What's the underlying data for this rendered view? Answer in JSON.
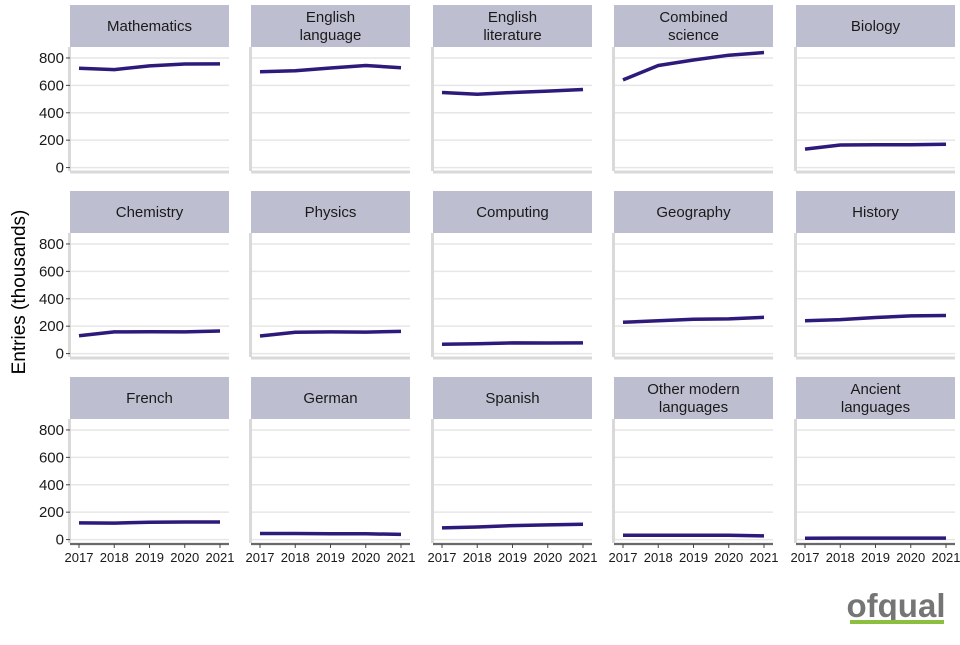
{
  "chart_data": {
    "type": "line",
    "layout": "facet-grid-small-multiples",
    "ylabel": "Entries (thousands)",
    "xlabel": "",
    "x": [
      "2017",
      "2018",
      "2019",
      "2020",
      "2021"
    ],
    "y_ticks": [
      0,
      200,
      400,
      600,
      800
    ],
    "ylim": [
      -25,
      880
    ],
    "grid": true,
    "line_color": "#2e1a7a",
    "strip_color": "#bdbed0",
    "panel_border_color": "#d9d9d9",
    "series": [
      {
        "name": "Mathematics",
        "values": [
          725,
          715,
          742,
          756,
          757
        ]
      },
      {
        "name": "English\nlanguage",
        "values": [
          700,
          706,
          727,
          745,
          728
        ]
      },
      {
        "name": "English\nliterature",
        "values": [
          548,
          535,
          548,
          558,
          570
        ]
      },
      {
        "name": "Combined\nscience",
        "values": [
          640,
          745,
          785,
          820,
          840
        ]
      },
      {
        "name": "Biology",
        "values": [
          135,
          165,
          167,
          167,
          170
        ]
      },
      {
        "name": "Chemistry",
        "values": [
          130,
          158,
          160,
          158,
          165
        ]
      },
      {
        "name": "Physics",
        "values": [
          128,
          155,
          158,
          157,
          162
        ]
      },
      {
        "name": "Computing",
        "values": [
          68,
          72,
          78,
          77,
          78
        ]
      },
      {
        "name": "Geography",
        "values": [
          228,
          240,
          250,
          253,
          265
        ]
      },
      {
        "name": "History",
        "values": [
          240,
          248,
          263,
          275,
          278
        ]
      },
      {
        "name": "French",
        "values": [
          122,
          120,
          127,
          128,
          128
        ]
      },
      {
        "name": "German",
        "values": [
          44,
          44,
          43,
          42,
          38
        ]
      },
      {
        "name": "Spanish",
        "values": [
          85,
          92,
          102,
          107,
          112
        ]
      },
      {
        "name": "Other modern\nlanguages",
        "values": [
          32,
          32,
          31,
          31,
          27
        ]
      },
      {
        "name": "Ancient\nlanguages",
        "values": [
          10,
          11,
          11,
          11,
          11
        ]
      }
    ]
  },
  "logo": {
    "text": "ofqual",
    "text_color": "#757575",
    "bar_color": "#8cbf3f"
  }
}
